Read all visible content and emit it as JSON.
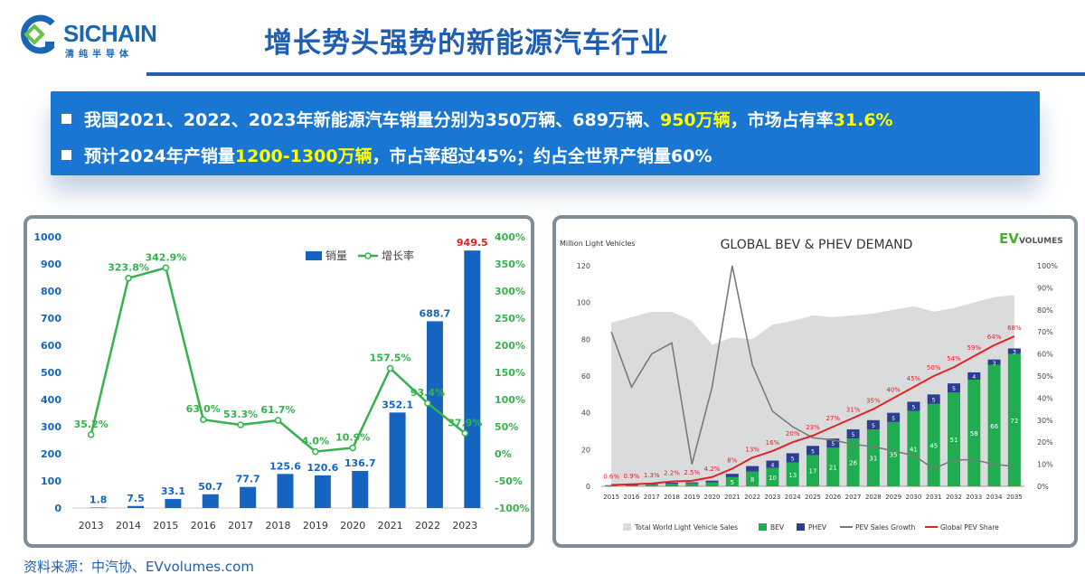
{
  "header": {
    "logo_text": "SICHAIN",
    "logo_sub": "清纯半导体",
    "title": "增长势头强势的新能源汽车行业"
  },
  "banner": {
    "line1": {
      "prefix": "我国2021、2022、2023年新能源汽车销量分别为350万辆、689万辆、",
      "highlight1": "950万辆",
      "middle": "，市场占有率",
      "highlight2": "31.6%"
    },
    "line2": {
      "prefix": "预计2024年产销量",
      "highlight": "1200-1300万辆",
      "suffix": "，市占率超过45%；约占全世界产销量60%"
    }
  },
  "colors": {
    "bar": "#1565c0",
    "growth_line": "#33b34a",
    "banner": "#1976d2",
    "highlight": "#ffff00",
    "bev": "#1fad50",
    "phev": "#2c3f8f",
    "share": "#e52222",
    "pev_growth": "#7a7a7a",
    "total_area": "#d9dbdd"
  },
  "chart_data": [
    {
      "type": "bar",
      "categories": [
        "2013",
        "2014",
        "2015",
        "2016",
        "2017",
        "2018",
        "2019",
        "2020",
        "2021",
        "2022",
        "2023"
      ],
      "series": [
        {
          "name": "销量",
          "type": "bar",
          "axis": "left",
          "values": [
            1.8,
            7.5,
            33.1,
            50.7,
            77.7,
            125.6,
            120.6,
            136.7,
            352.1,
            688.7,
            949.5
          ],
          "labels": [
            "1.8",
            "7.5",
            "33.1",
            "50.7",
            "77.7",
            "125.6",
            "120.6",
            "136.7",
            "352.1",
            "688.7",
            "949.5"
          ]
        },
        {
          "name": "增长率",
          "type": "line",
          "axis": "right",
          "values": [
            35.2,
            323.8,
            342.9,
            63.0,
            53.3,
            61.7,
            4.0,
            10.9,
            157.5,
            93.4,
            37.9
          ],
          "labels": [
            "35.2%",
            "323.8%",
            "342.9%",
            "63.0%",
            "53.3%",
            "61.7%",
            "4.0%",
            "10.9%",
            "157.5%",
            "93.4%",
            "37.9%"
          ]
        }
      ],
      "ylim": [
        0,
        1000
      ],
      "y_ticks": [
        "0",
        "100",
        "200",
        "300",
        "400",
        "500",
        "600",
        "700",
        "800",
        "900",
        "1000"
      ],
      "y2lim": [
        -100,
        400
      ],
      "y2_ticks": [
        "-100%",
        "-50%",
        "0%",
        "50%",
        "100%",
        "150%",
        "200%",
        "250%",
        "300%",
        "350%",
        "400%"
      ],
      "legend_position": "top-right",
      "grid": false
    },
    {
      "type": "bar",
      "title": "GLOBAL BEV & PHEV DEMAND",
      "ylabel": "Million Light Vehicles",
      "brand": {
        "ev": "EV",
        "volumes": "VOLUMES"
      },
      "categories": [
        "2015",
        "2016",
        "2017",
        "2018",
        "2019",
        "2020",
        "2021",
        "2022",
        "2023",
        "2024",
        "2025",
        "2026",
        "2027",
        "2028",
        "2029",
        "2030",
        "2031",
        "2032",
        "2033",
        "2034",
        "2035"
      ],
      "ylim": [
        0,
        120
      ],
      "y_ticks": [
        "0",
        "20",
        "40",
        "60",
        "80",
        "100",
        "120"
      ],
      "y2lim": [
        0,
        100
      ],
      "y2_ticks": [
        "0%",
        "10%",
        "20%",
        "30%",
        "40%",
        "50%",
        "60%",
        "70%",
        "80%",
        "90%",
        "100%"
      ],
      "series": [
        {
          "name": "Total World Light Vehicle Sales",
          "type": "area",
          "axis": "left",
          "values": [
            89,
            92,
            95,
            95,
            90,
            77,
            81,
            80,
            88,
            90,
            93,
            92,
            93,
            94,
            96,
            98,
            95,
            97,
            100,
            103,
            104
          ]
        },
        {
          "name": "BEV",
          "type": "stacked-bar",
          "axis": "left",
          "values": [
            0.3,
            0.5,
            0.9,
            1.4,
            1.6,
            2.1,
            5,
            8,
            10,
            13,
            17,
            21,
            26,
            31,
            35,
            41,
            45,
            51,
            58,
            66,
            72
          ],
          "labels": [
            "",
            "",
            "",
            "",
            "",
            "",
            "5",
            "8",
            "10",
            "13",
            "17",
            "21",
            "26",
            "31",
            "35",
            "41",
            "45",
            "51",
            "58",
            "66",
            "72"
          ]
        },
        {
          "name": "PHEV",
          "type": "stacked-bar",
          "axis": "left",
          "values": [
            0.3,
            0.3,
            0.4,
            0.6,
            0.6,
            1.0,
            1.8,
            3,
            4,
            5,
            5,
            5,
            5,
            5,
            5,
            5,
            5,
            5,
            4,
            3,
            3
          ],
          "labels": [
            "",
            "",
            "",
            "",
            "",
            "",
            "",
            "",
            "4",
            "5",
            "5",
            "5",
            "5",
            "5",
            "5",
            "5",
            "5",
            "5",
            "4",
            "3",
            "3"
          ]
        },
        {
          "name": "PEV Sales Growth",
          "type": "line",
          "axis": "right",
          "values": [
            70,
            45,
            60,
            65,
            10,
            45,
            105,
            55,
            34,
            27,
            22,
            21,
            19,
            18,
            16,
            14,
            8,
            12,
            12,
            10,
            9
          ]
        },
        {
          "name": "Global PEV Share",
          "type": "line",
          "axis": "right",
          "values": [
            0.6,
            0.9,
            1.3,
            2.2,
            2.5,
            4.2,
            8,
            13,
            16,
            20,
            23,
            27,
            31,
            35,
            40,
            45,
            50,
            54,
            59,
            64,
            68
          ],
          "labels": [
            "0.6%",
            "0.9%",
            "1.3%",
            "2.2%",
            "2.5%",
            "4.2%",
            "8%",
            "13%",
            "16%",
            "20%",
            "23%",
            "27%",
            "31%",
            "35%",
            "40%",
            "45%",
            "50%",
            "54%",
            "59%",
            "64%",
            "68%"
          ]
        }
      ],
      "legend_position": "bottom",
      "grid": false
    }
  ],
  "source": "资料来源：中汽协、EVvolumes.com"
}
